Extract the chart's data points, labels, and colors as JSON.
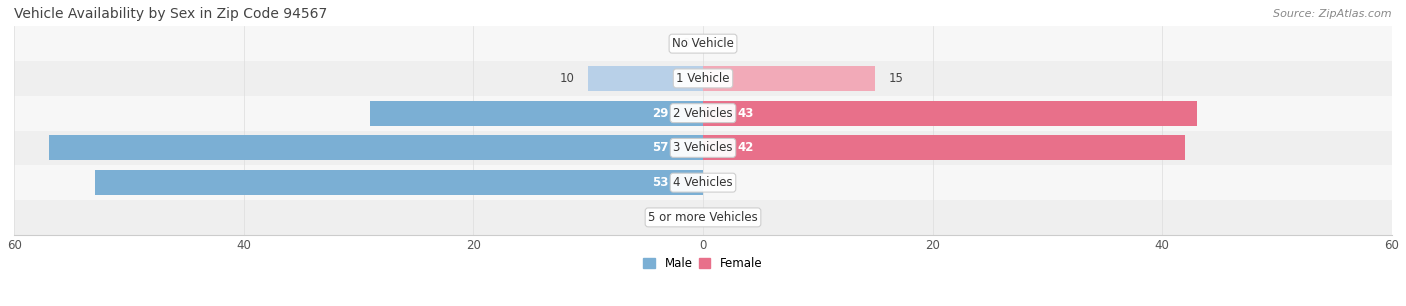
{
  "title": "Vehicle Availability by Sex in Zip Code 94567",
  "source": "Source: ZipAtlas.com",
  "categories": [
    "No Vehicle",
    "1 Vehicle",
    "2 Vehicles",
    "3 Vehicles",
    "4 Vehicles",
    "5 or more Vehicles"
  ],
  "male_values": [
    0,
    10,
    29,
    57,
    53,
    0
  ],
  "female_values": [
    0,
    15,
    43,
    42,
    0,
    0
  ],
  "male_color": "#7bafd4",
  "female_color": "#e8708a",
  "male_color_light": "#b8d0e8",
  "female_color_light": "#f2aab8",
  "label_color_dark": "#444444",
  "label_color_white": "#ffffff",
  "xlim": 60,
  "bar_height": 0.72,
  "row_bg_light": "#f7f7f7",
  "row_bg_dark": "#efefef"
}
